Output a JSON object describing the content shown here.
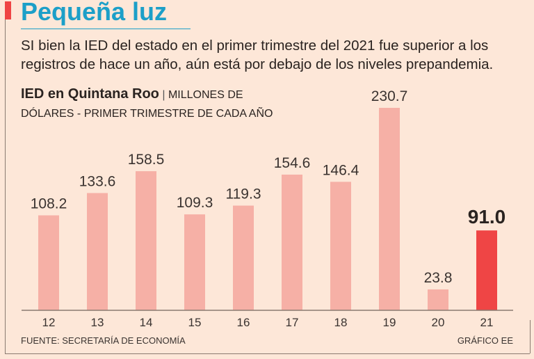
{
  "header": {
    "title": "Pequeña luz",
    "subtitle": "SI bien la IED del estado en el primer trimestre del 2021 fue superior a los registros de hace un año, aún está por debajo de los niveles prepandemia."
  },
  "chart_data": {
    "type": "bar",
    "title": "IED en Quintana Roo",
    "subtitle": "MILLONES DE DÓLARES - PRIMER TRIMESTRE DE CADA AÑO",
    "categories": [
      "12",
      "13",
      "14",
      "15",
      "16",
      "17",
      "18",
      "19",
      "20",
      "21"
    ],
    "values": [
      108.2,
      133.6,
      158.5,
      109.3,
      119.3,
      154.6,
      146.4,
      230.7,
      23.8,
      91.0
    ],
    "labels": [
      "108.2",
      "133.6",
      "158.5",
      "109.3",
      "119.3",
      "154.6",
      "146.4",
      "230.7",
      "23.8",
      "91.0"
    ],
    "highlight_index": 9,
    "xlabel": "",
    "ylabel": "",
    "ylim": [
      0,
      230.7
    ],
    "grid": false,
    "colors": {
      "bar": "#f6b0a6",
      "highlight": "#ef4545",
      "axis": "#8a7a70"
    }
  },
  "footer": {
    "source": "FUENTE: SECRETARÍA DE ECONOMÍA",
    "credit": "GRÁFICO EE"
  }
}
